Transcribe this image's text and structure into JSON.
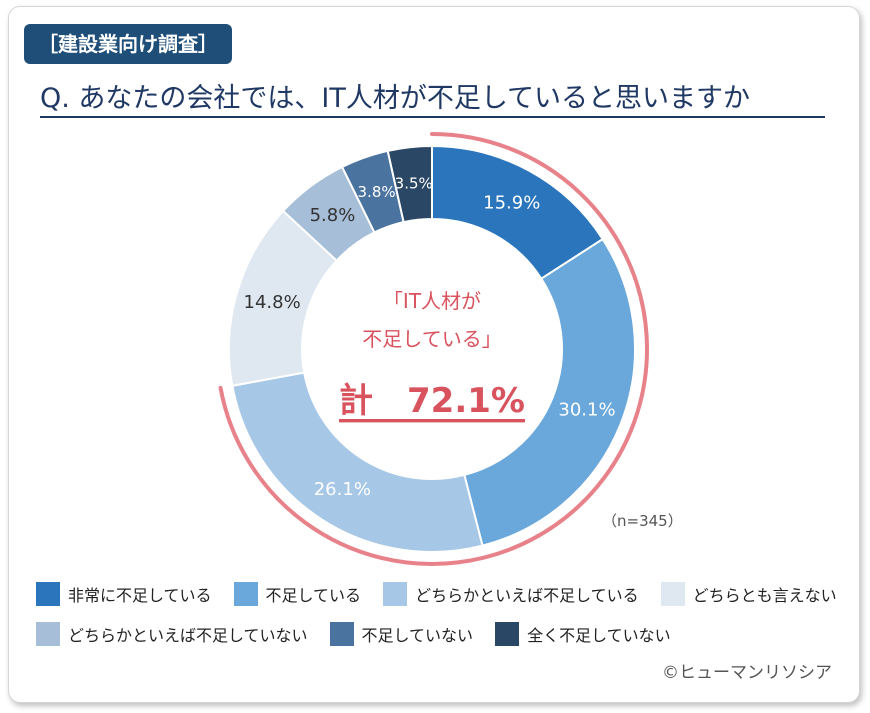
{
  "header": {
    "tag": "［建設業向け調査］",
    "question": "Q. あなたの会社では、IT人材が不足していると思いますか"
  },
  "chart_data": {
    "type": "pie",
    "donut": true,
    "categories": [
      "非常に不足している",
      "不足している",
      "どちらかといえば不足している",
      "どちらとも言えない",
      "どちらかといえば不足していない",
      "不足していない",
      "全く不足していない"
    ],
    "values": [
      15.9,
      30.1,
      26.1,
      14.8,
      5.8,
      3.8,
      3.5
    ],
    "value_labels": [
      "15.9%",
      "30.1%",
      "26.1%",
      "14.8%",
      "5.8%",
      "3.8%",
      "3.5%"
    ],
    "colors": [
      "#2a75bb",
      "#6aa8dc",
      "#a7c7e7",
      "#dfe7f1",
      "#a6bed8",
      "#4a73a0",
      "#2b4766"
    ],
    "label_colors": [
      "#ffffff",
      "#ffffff",
      "#ffffff",
      "#333333",
      "#333333",
      "#ffffff",
      "#ffffff"
    ],
    "center_text": {
      "line1": "「IT人材が",
      "line2": "不足している」",
      "total": "計　72.1%"
    },
    "highlight_arc_color": "#e8828a",
    "highlight_text_color": "#d9535e",
    "n_label": "（n=345）",
    "legend_position": "bottom"
  },
  "legend": {
    "row1": [
      {
        "label": "非常に不足している",
        "color": "#2a75bb"
      },
      {
        "label": "不足している",
        "color": "#6aa8dc"
      },
      {
        "label": "どちらかといえば不足している",
        "color": "#a7c7e7"
      },
      {
        "label": "どちらとも言えない",
        "color": "#dfe7f1"
      }
    ],
    "row2": [
      {
        "label": "どちらかといえば不足していない",
        "color": "#a6bed8"
      },
      {
        "label": "不足していない",
        "color": "#4a73a0"
      },
      {
        "label": "全く不足していない",
        "color": "#2b4766"
      }
    ]
  },
  "credit": "©ヒューマンリソシア"
}
